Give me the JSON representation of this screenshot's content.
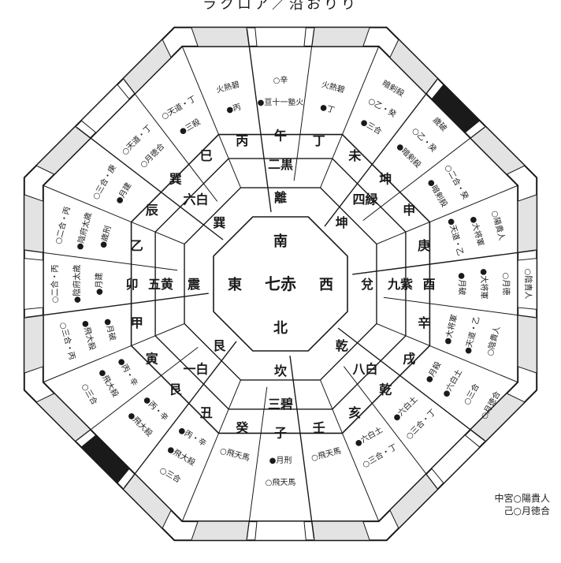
{
  "top_text": "ラクロア／沿おりり",
  "center": {
    "top": "南",
    "center": "七赤",
    "bottom": "北",
    "left": "東",
    "right": "西"
  },
  "palaces": [
    {
      "id": "south",
      "trigram": "離",
      "star": "二黒"
    },
    {
      "id": "southwest",
      "trigram": "坤",
      "star": "四緑"
    },
    {
      "id": "west",
      "trigram": "兌",
      "star": "九紫"
    },
    {
      "id": "northwest",
      "trigram": "乾",
      "star": "八白"
    },
    {
      "id": "north",
      "trigram": "坎",
      "star": "三碧"
    },
    {
      "id": "northeast",
      "trigram": "艮",
      "star": "一白"
    },
    {
      "id": "east",
      "trigram": "震",
      "star": "五黄"
    },
    {
      "id": "southeast",
      "trigram": "巽",
      "star": "六白"
    }
  ],
  "branches": [
    "午",
    "丁",
    "未",
    "坤",
    "申",
    "庚",
    "酉",
    "辛",
    "戌",
    "乾",
    "亥",
    "壬",
    "子",
    "癸",
    "丑",
    "艮",
    "寅",
    "甲",
    "卯",
    "乙",
    "辰",
    "巽",
    "巳",
    "丙"
  ],
  "outer": [
    {
      "id": "s-mid",
      "lines": [
        "●亘十一塾火",
        "○辛"
      ]
    },
    {
      "id": "s-ding",
      "lines": [
        "●丁",
        "火熱碧"
      ]
    },
    {
      "id": "sw-wei",
      "lines": [
        "●三合",
        "○乙・癸",
        "暗剣殺"
      ]
    },
    {
      "id": "sw-kun",
      "lines": [
        "●暗剣殺",
        "○乙・癸",
        "歳破"
      ]
    },
    {
      "id": "sw-shen",
      "lines": [
        "●暗剣殺",
        "○二合・癸"
      ]
    },
    {
      "id": "w-geng",
      "lines": [
        "●天道・乙",
        "●大将軍",
        "○陽貴人"
      ]
    },
    {
      "id": "w-you",
      "lines": [
        "●月破",
        "●大将軍",
        "○月徳",
        "○陰貴人"
      ]
    },
    {
      "id": "w-xin",
      "lines": [
        "●大将軍",
        "●天道・乙",
        "○陰貴人"
      ]
    },
    {
      "id": "nw-xu",
      "lines": [
        "●月殺",
        "●六白土",
        "○三合",
        "○月徳合"
      ]
    },
    {
      "id": "nw-qian",
      "lines": [
        "●六白土",
        "○三合・丁"
      ]
    },
    {
      "id": "nw-hai",
      "lines": [
        "●六白土",
        "○三合・丁"
      ]
    },
    {
      "id": "n-ren",
      "lines": [
        "○飛天馬"
      ]
    },
    {
      "id": "n-zi",
      "lines": [
        "●月刑",
        "○飛天馬"
      ]
    },
    {
      "id": "n-gui",
      "lines": [
        "○飛天馬"
      ]
    },
    {
      "id": "ne-chou",
      "lines": [
        "●丙・辛",
        "●飛大殺",
        "○三合"
      ]
    },
    {
      "id": "ne-gen",
      "lines": [
        "●丙・辛",
        "●飛大殺"
      ]
    },
    {
      "id": "ne-yin",
      "lines": [
        "●丙・辛",
        "●飛大殺",
        "○三合"
      ]
    },
    {
      "id": "e-jia",
      "lines": [
        "●月破",
        "●飛大殺",
        "○三合・丙"
      ]
    },
    {
      "id": "e-mao",
      "lines": [
        "●月建",
        "●陰府太歳",
        "○二合・丙"
      ]
    },
    {
      "id": "e-yi",
      "lines": [
        "●歳刑",
        "●陰府太歳",
        "○二合・丙"
      ]
    },
    {
      "id": "se-chen",
      "lines": [
        "●月建",
        "○三合・庚"
      ]
    },
    {
      "id": "se-xun",
      "lines": [
        "○月徳合",
        "○天道・丁"
      ]
    },
    {
      "id": "se-si",
      "lines": [
        "●三殺",
        "○天道・丁"
      ]
    },
    {
      "id": "s-bing",
      "lines": [
        "●丙",
        "火熱碧"
      ]
    }
  ],
  "legend": {
    "line1": "中宮○陽貴人",
    "line2": "己○月徳合"
  }
}
